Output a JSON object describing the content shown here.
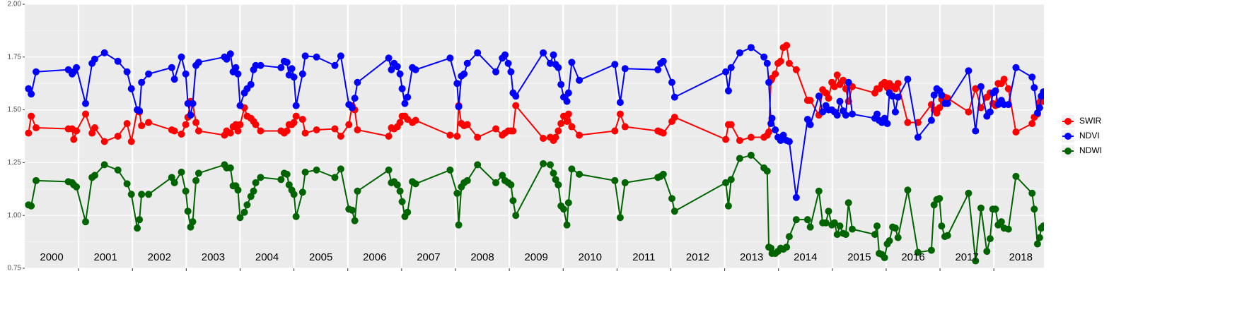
{
  "chart_data": {
    "type": "line",
    "xlim": [
      2000,
      2018.93
    ],
    "ylim": [
      0.75,
      2
    ],
    "yticks": [
      0.75,
      {
        "value": 1,
        "label": "1.00"
      },
      1.25,
      {
        "value": 1.5,
        "label": "1.50"
      },
      1.75,
      {
        "value": 2,
        "label": "2.00"
      }
    ],
    "xticks": [
      2001,
      2002,
      2003,
      2004,
      2005,
      2006,
      2007,
      2008,
      2009,
      2010,
      2011,
      2012,
      2013,
      2014,
      2015,
      2016,
      2017,
      2018
    ],
    "grid": true,
    "legend": "right",
    "annotations": [
      {
        "text": "2000",
        "x": 2000.5,
        "y": 0.8
      },
      {
        "text": "2001",
        "x": 2001.5,
        "y": 0.8
      },
      {
        "text": "2002",
        "x": 2002.5,
        "y": 0.8
      },
      {
        "text": "2003",
        "x": 2003.5,
        "y": 0.8
      },
      {
        "text": "2004",
        "x": 2004.5,
        "y": 0.8
      },
      {
        "text": "2005",
        "x": 2005.5,
        "y": 0.8
      },
      {
        "text": "2006",
        "x": 2006.5,
        "y": 0.8
      },
      {
        "text": "2007",
        "x": 2007.5,
        "y": 0.8
      },
      {
        "text": "2008",
        "x": 2008.5,
        "y": 0.8
      },
      {
        "text": "2009",
        "x": 2009.5,
        "y": 0.8
      },
      {
        "text": "2010",
        "x": 2010.5,
        "y": 0.8
      },
      {
        "text": "2011",
        "x": 2011.5,
        "y": 0.8
      },
      {
        "text": "2012",
        "x": 2012.5,
        "y": 0.8
      },
      {
        "text": "2013",
        "x": 2013.5,
        "y": 0.8
      },
      {
        "text": "2014",
        "x": 2014.5,
        "y": 0.8
      },
      {
        "text": "2015",
        "x": 2015.5,
        "y": 0.8
      },
      {
        "text": "2016",
        "x": 2016.5,
        "y": 0.8
      },
      {
        "text": "2017",
        "x": 2017.5,
        "y": 0.8
      },
      {
        "text": "2018",
        "x": 2018.5,
        "y": 0.8
      }
    ],
    "x": [
      2000.07,
      2000.12,
      2000.21,
      2000.81,
      2000.88,
      2000.91,
      2000.96,
      2001.13,
      2001.25,
      2001.3,
      2001.48,
      2001.73,
      2001.9,
      2001.98,
      2002.09,
      2002.13,
      2002.17,
      2002.3,
      2002.73,
      2002.78,
      2002.91,
      2002.99,
      2003.03,
      2003.08,
      2003.12,
      2003.18,
      2003.23,
      2003.71,
      2003.75,
      2003.82,
      2003.87,
      2003.92,
      2003.96,
      2004.0,
      2004.08,
      2004.13,
      2004.2,
      2004.25,
      2004.29,
      2004.38,
      2004.76,
      2004.82,
      2004.87,
      2004.91,
      2004.96,
      2005.0,
      2005.04,
      2005.16,
      2005.21,
      2005.42,
      2005.76,
      2005.87,
      2006.02,
      2006.08,
      2006.13,
      2006.18,
      2006.76,
      2006.81,
      2006.86,
      2006.92,
      2006.97,
      2007.01,
      2007.06,
      2007.11,
      2007.2,
      2007.26,
      2007.9,
      2008.03,
      2008.06,
      2008.11,
      2008.16,
      2008.22,
      2008.41,
      2008.75,
      2008.87,
      2008.92,
      2008.98,
      2009.03,
      2009.07,
      2009.12,
      2009.63,
      2009.76,
      2009.82,
      2009.86,
      2009.91,
      2009.96,
      2010.01,
      2010.07,
      2010.1,
      2010.16,
      2010.3,
      2010.96,
      2011.06,
      2011.15,
      2011.76,
      2011.81,
      2011.86,
      2012.02,
      2012.07,
      2013.02,
      2013.07,
      2013.12,
      2013.28,
      2013.49,
      2013.73,
      2013.79,
      2013.82,
      2013.86,
      2013.88,
      2013.94,
      2013.99,
      2014.04,
      2014.09,
      2014.15,
      2014.2,
      2014.33,
      2014.54,
      2014.59,
      2014.75,
      2014.82,
      2014.88,
      2014.93,
      2014.99,
      2015.04,
      2015.09,
      2015.14,
      2015.2,
      2015.25,
      2015.3,
      2015.37,
      2015.79,
      2015.83,
      2015.87,
      2015.92,
      2015.97,
      2016.02,
      2016.06,
      2016.12,
      2016.17,
      2016.22,
      2016.4,
      2016.59,
      2016.84,
      2016.89,
      2016.94,
      2016.99,
      2017.03,
      2017.09,
      2017.14,
      2017.53,
      2017.66,
      2017.76,
      2017.87,
      2017.93,
      2017.98,
      2018.03,
      2018.08,
      2018.14,
      2018.19,
      2018.27,
      2018.41,
      2018.71,
      2018.75,
      2018.81,
      2018.85,
      2018.88,
      2018.92
    ],
    "series": [
      {
        "name": "SWIR",
        "color": "#ff0000",
        "values": [
          1.39,
          1.47,
          1.415,
          1.41,
          1.41,
          1.36,
          1.4,
          1.48,
          1.39,
          1.415,
          1.35,
          1.375,
          1.435,
          1.35,
          1.5,
          1.49,
          1.425,
          1.44,
          1.405,
          1.4,
          1.385,
          1.43,
          1.465,
          1.54,
          1.53,
          1.44,
          1.4,
          1.38,
          1.4,
          1.39,
          1.42,
          1.43,
          1.4,
          1.43,
          1.51,
          1.47,
          1.46,
          1.445,
          1.43,
          1.4,
          1.4,
          1.39,
          1.4,
          1.43,
          1.43,
          1.44,
          1.47,
          1.455,
          1.39,
          1.405,
          1.41,
          1.375,
          1.43,
          1.52,
          1.5,
          1.405,
          1.375,
          1.415,
          1.41,
          1.42,
          1.44,
          1.47,
          1.47,
          1.455,
          1.44,
          1.45,
          1.38,
          1.375,
          1.52,
          1.435,
          1.425,
          1.43,
          1.37,
          1.41,
          1.38,
          1.39,
          1.4,
          1.4,
          1.4,
          1.52,
          1.365,
          1.37,
          1.355,
          1.37,
          1.4,
          1.435,
          1.47,
          1.445,
          1.48,
          1.42,
          1.38,
          1.4,
          1.48,
          1.42,
          1.4,
          1.395,
          1.39,
          1.445,
          1.465,
          1.36,
          1.43,
          1.43,
          1.355,
          1.37,
          1.37,
          1.38,
          1.395,
          1.64,
          1.65,
          1.67,
          1.72,
          1.73,
          1.795,
          1.805,
          1.72,
          1.69,
          1.545,
          1.545,
          1.475,
          1.595,
          1.58,
          1.555,
          1.63,
          1.61,
          1.665,
          1.62,
          1.64,
          1.6,
          1.54,
          1.61,
          1.58,
          1.6,
          1.6,
          1.62,
          1.63,
          1.605,
          1.625,
          1.61,
          1.6,
          1.625,
          1.44,
          1.44,
          1.525,
          1.5,
          1.485,
          1.51,
          1.55,
          1.56,
          1.555,
          1.49,
          1.6,
          1.51,
          1.56,
          1.58,
          1.53,
          1.52,
          1.625,
          1.625,
          1.645,
          1.6,
          1.395,
          1.435,
          1.465,
          1.48,
          1.535,
          1.55,
          1.54
        ]
      },
      {
        "name": "NDVI",
        "color": "#0000ff",
        "values": [
          1.6,
          1.575,
          1.68,
          1.69,
          1.67,
          1.68,
          1.7,
          1.53,
          1.72,
          1.74,
          1.77,
          1.73,
          1.68,
          1.6,
          1.5,
          1.495,
          1.63,
          1.67,
          1.7,
          1.645,
          1.75,
          1.67,
          1.53,
          1.475,
          1.53,
          1.71,
          1.725,
          1.75,
          1.74,
          1.765,
          1.68,
          1.7,
          1.67,
          1.52,
          1.58,
          1.6,
          1.62,
          1.69,
          1.71,
          1.71,
          1.7,
          1.73,
          1.725,
          1.665,
          1.695,
          1.655,
          1.52,
          1.67,
          1.755,
          1.75,
          1.71,
          1.755,
          1.525,
          1.51,
          1.555,
          1.63,
          1.745,
          1.69,
          1.72,
          1.705,
          1.67,
          1.6,
          1.53,
          1.56,
          1.7,
          1.69,
          1.745,
          1.625,
          1.515,
          1.66,
          1.67,
          1.72,
          1.77,
          1.68,
          1.745,
          1.76,
          1.72,
          1.68,
          1.58,
          1.565,
          1.77,
          1.72,
          1.76,
          1.715,
          1.7,
          1.62,
          1.56,
          1.54,
          1.58,
          1.725,
          1.64,
          1.715,
          1.535,
          1.695,
          1.69,
          1.72,
          1.73,
          1.63,
          1.56,
          1.68,
          1.59,
          1.7,
          1.77,
          1.795,
          1.75,
          1.72,
          1.63,
          1.435,
          1.46,
          1.405,
          1.37,
          1.355,
          1.38,
          1.355,
          1.35,
          1.085,
          1.455,
          1.43,
          1.565,
          1.49,
          1.52,
          1.5,
          1.5,
          1.49,
          1.475,
          1.54,
          1.495,
          1.475,
          1.63,
          1.48,
          1.46,
          1.48,
          1.45,
          1.44,
          1.46,
          1.435,
          1.58,
          1.565,
          1.49,
          1.56,
          1.645,
          1.37,
          1.45,
          1.57,
          1.6,
          1.59,
          1.57,
          1.53,
          1.53,
          1.685,
          1.4,
          1.61,
          1.47,
          1.49,
          1.58,
          1.59,
          1.525,
          1.545,
          1.525,
          1.525,
          1.7,
          1.655,
          1.605,
          1.485,
          1.51,
          1.565,
          1.585
        ]
      },
      {
        "name": "NDWI",
        "color": "#006400",
        "values": [
          1.05,
          1.045,
          1.165,
          1.16,
          1.155,
          1.145,
          1.135,
          0.97,
          1.18,
          1.19,
          1.24,
          1.215,
          1.15,
          1.1,
          0.94,
          0.98,
          1.1,
          1.1,
          1.18,
          1.155,
          1.205,
          1.115,
          1.02,
          0.945,
          0.97,
          1.165,
          1.2,
          1.24,
          1.225,
          1.225,
          1.14,
          1.14,
          1.12,
          0.99,
          1.015,
          1.05,
          1.09,
          1.115,
          1.155,
          1.18,
          1.17,
          1.2,
          1.195,
          1.145,
          1.12,
          1.1,
          0.995,
          1.11,
          1.205,
          1.215,
          1.18,
          1.22,
          1.03,
          1.025,
          0.975,
          1.115,
          1.215,
          1.155,
          1.16,
          1.145,
          1.115,
          1.065,
          0.995,
          1.015,
          1.16,
          1.15,
          1.215,
          1.105,
          0.955,
          1.135,
          1.155,
          1.165,
          1.24,
          1.155,
          1.19,
          1.165,
          1.155,
          1.145,
          1.07,
          1.0,
          1.245,
          1.24,
          1.2,
          1.17,
          1.145,
          1.045,
          1.03,
          0.955,
          1.06,
          1.22,
          1.195,
          1.165,
          0.99,
          1.155,
          1.18,
          1.185,
          1.195,
          1.08,
          1.02,
          1.155,
          1.045,
          1.17,
          1.27,
          1.285,
          1.225,
          1.21,
          0.85,
          0.845,
          0.82,
          0.82,
          0.83,
          0.845,
          0.84,
          0.85,
          0.9,
          0.98,
          0.98,
          0.945,
          1.115,
          0.965,
          0.965,
          1.02,
          0.955,
          0.965,
          0.91,
          0.95,
          0.915,
          0.91,
          1.06,
          0.935,
          0.91,
          0.95,
          0.82,
          0.815,
          0.8,
          0.865,
          0.88,
          0.945,
          0.94,
          0.895,
          1.12,
          0.825,
          0.835,
          1.05,
          1.075,
          1.08,
          0.95,
          0.9,
          0.905,
          1.105,
          0.785,
          1.035,
          0.83,
          0.89,
          1.03,
          1.03,
          0.955,
          0.97,
          0.94,
          0.935,
          1.185,
          1.105,
          1.03,
          0.865,
          0.895,
          0.94,
          0.95
        ]
      }
    ]
  }
}
